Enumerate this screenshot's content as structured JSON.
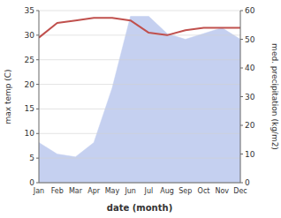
{
  "chart_data": {
    "type": "line",
    "categories": [
      "Jan",
      "Feb",
      "Mar",
      "Apr",
      "May",
      "Jun",
      "Jul",
      "Aug",
      "Sep",
      "Oct",
      "Nov",
      "Dec"
    ],
    "series": [
      {
        "type": "area",
        "axis": "y2",
        "color": "#c5d0f0",
        "values": [
          14,
          10,
          9,
          14,
          33,
          58,
          58,
          52,
          50,
          52,
          54,
          50
        ]
      },
      {
        "type": "line",
        "color": "#c0504d",
        "values": [
          29.5,
          32.5,
          33.0,
          33.5,
          33.5,
          33.0,
          30.5,
          30.0,
          31.0,
          31.5,
          31.5,
          31.5
        ]
      }
    ],
    "xlabel": "date (month)",
    "ylabel": "max temp (C)",
    "y2label": "med. precipitation (kg/m2)",
    "ylim": [
      0,
      35
    ],
    "yticks": [
      0,
      5,
      10,
      15,
      20,
      25,
      30,
      35
    ],
    "y2lim": [
      0,
      60
    ],
    "y2ticks": [
      0,
      10,
      20,
      30,
      40,
      50,
      60
    ],
    "grid": true
  }
}
